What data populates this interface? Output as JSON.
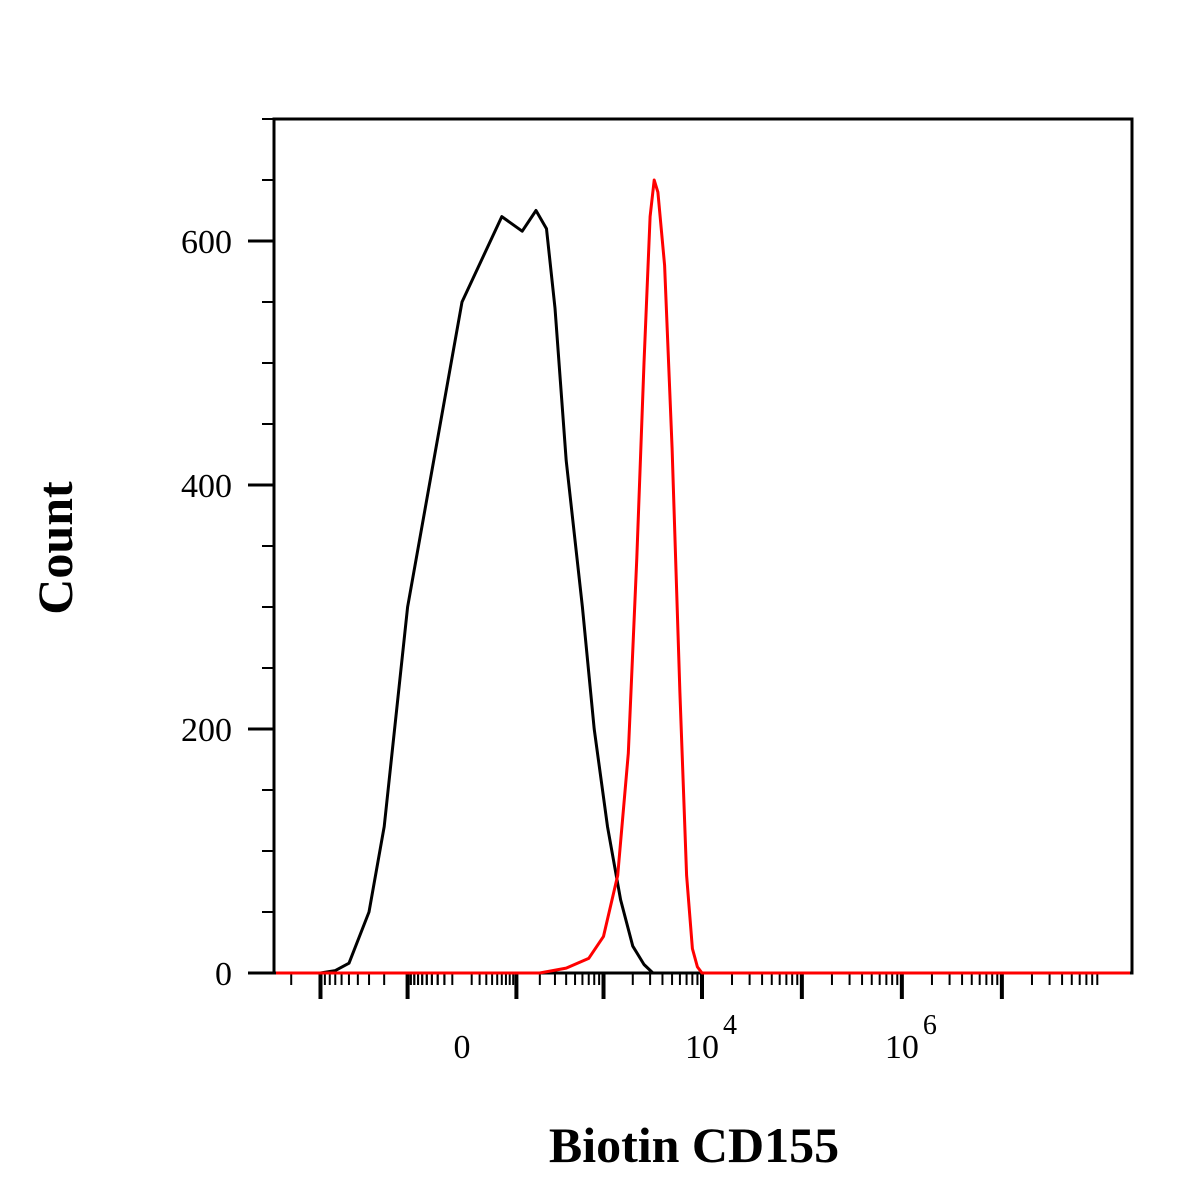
{
  "chart_data": {
    "type": "histogram",
    "xlabel": "Biotin CD155",
    "ylabel": "Count",
    "x_scale": "biexponential",
    "ylim": [
      0,
      700
    ],
    "y_ticks": [
      {
        "value": 0,
        "label": "0"
      },
      {
        "value": 200,
        "label": "200"
      },
      {
        "value": 400,
        "label": "400"
      },
      {
        "value": 600,
        "label": "600"
      }
    ],
    "x_ticks": [
      {
        "value": 0,
        "label": "0",
        "base": "0",
        "exp": ""
      },
      {
        "value": 10000,
        "label": "10^4",
        "base": "10",
        "exp": "4"
      },
      {
        "value": 1000000,
        "label": "10^6",
        "base": "10",
        "exp": "6"
      }
    ],
    "grid": false,
    "legend": "none",
    "series": [
      {
        "color": "#000000",
        "points": [
          [
            -1000,
            0
          ],
          [
            -700,
            2
          ],
          [
            -500,
            8
          ],
          [
            -300,
            50
          ],
          [
            -200,
            120
          ],
          [
            -100,
            300
          ],
          [
            0,
            550
          ],
          [
            60,
            620
          ],
          [
            120,
            608
          ],
          [
            180,
            625
          ],
          [
            240,
            610
          ],
          [
            300,
            545
          ],
          [
            400,
            420
          ],
          [
            600,
            300
          ],
          [
            800,
            200
          ],
          [
            1100,
            120
          ],
          [
            1500,
            60
          ],
          [
            2000,
            22
          ],
          [
            2600,
            7
          ],
          [
            3200,
            0
          ]
        ]
      },
      {
        "color": "#ff0000",
        "points": [
          [
            200,
            0
          ],
          [
            400,
            4
          ],
          [
            700,
            12
          ],
          [
            1000,
            30
          ],
          [
            1400,
            80
          ],
          [
            1800,
            180
          ],
          [
            2200,
            340
          ],
          [
            2600,
            500
          ],
          [
            3000,
            620
          ],
          [
            3300,
            650
          ],
          [
            3600,
            640
          ],
          [
            4200,
            580
          ],
          [
            5000,
            430
          ],
          [
            6000,
            230
          ],
          [
            7000,
            80
          ],
          [
            8000,
            20
          ],
          [
            9000,
            5
          ],
          [
            10000,
            0
          ]
        ]
      }
    ]
  }
}
